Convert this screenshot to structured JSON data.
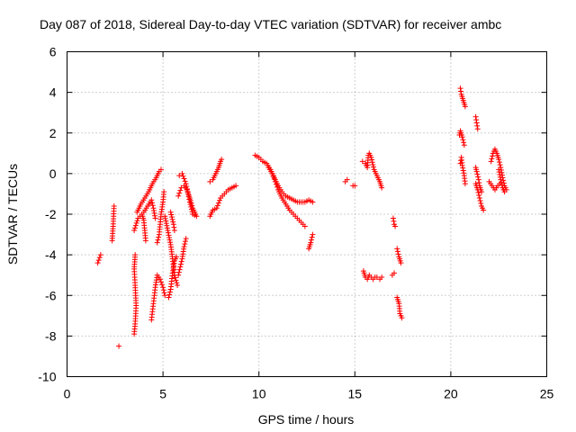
{
  "chart_data": {
    "type": "scatter",
    "title": "Day 087 of 2018, Sidereal Day-to-day VTEC variation (SDTVAR) for receiver ambc",
    "xlabel": "GPS time / hours",
    "ylabel": "SDTVAR / TECUs",
    "xlim": [
      0,
      25
    ],
    "ylim": [
      -10,
      6
    ],
    "xticks": [
      0,
      5,
      10,
      15,
      20,
      25
    ],
    "yticks": [
      -10,
      -8,
      -6,
      -4,
      -2,
      0,
      2,
      4,
      6
    ],
    "xtick_labels": [
      "0",
      "5",
      "10",
      "15",
      "20",
      "25"
    ],
    "ytick_labels": [
      "-10",
      "-8",
      "-6",
      "-4",
      "-2",
      "0",
      "2",
      "4",
      "6"
    ],
    "grid": true,
    "marker": "+",
    "color": "#ff0000",
    "tracks": [
      [
        [
          1.6,
          -4.4
        ],
        [
          1.75,
          -4.0
        ]
      ],
      [
        [
          2.35,
          -3.3
        ],
        [
          2.4,
          -2.6
        ],
        [
          2.45,
          -1.6
        ]
      ],
      [
        [
          2.7,
          -8.5
        ]
      ],
      [
        [
          3.5,
          -7.9
        ],
        [
          3.55,
          -7.4
        ],
        [
          3.6,
          -6.5
        ],
        [
          3.55,
          -5.5
        ],
        [
          3.5,
          -4.7
        ],
        [
          3.55,
          -4.0
        ]
      ],
      [
        [
          3.5,
          -2.8
        ],
        [
          3.7,
          -2.2
        ],
        [
          3.9,
          -2.0
        ],
        [
          4.0,
          -2.3
        ],
        [
          4.1,
          -3.3
        ]
      ],
      [
        [
          3.65,
          -1.9
        ],
        [
          3.85,
          -1.5
        ],
        [
          4.05,
          -1.2
        ],
        [
          4.25,
          -0.9
        ],
        [
          4.45,
          -0.5
        ],
        [
          4.65,
          -0.2
        ],
        [
          4.8,
          0.1
        ],
        [
          4.9,
          0.2
        ]
      ],
      [
        [
          4.0,
          -1.9
        ],
        [
          4.2,
          -1.6
        ],
        [
          4.4,
          -1.3
        ],
        [
          4.5,
          -1.7
        ],
        [
          4.6,
          -2.2
        ]
      ],
      [
        [
          4.4,
          -7.2
        ],
        [
          4.5,
          -6.4
        ],
        [
          4.6,
          -5.6
        ],
        [
          4.7,
          -5.0
        ],
        [
          4.85,
          -5.2
        ],
        [
          5.0,
          -5.6
        ],
        [
          5.1,
          -6.0
        ]
      ],
      [
        [
          4.7,
          -3.4
        ],
        [
          4.8,
          -3.0
        ],
        [
          4.9,
          -2.0
        ],
        [
          5.0,
          -1.4
        ],
        [
          5.05,
          -0.9
        ]
      ],
      [
        [
          5.1,
          -2.1
        ],
        [
          5.25,
          -2.8
        ],
        [
          5.4,
          -3.5
        ],
        [
          5.5,
          -4.2
        ],
        [
          5.6,
          -5.0
        ],
        [
          5.75,
          -5.5
        ]
      ],
      [
        [
          5.4,
          -1.9
        ],
        [
          5.55,
          -2.5
        ],
        [
          5.6,
          -2.8
        ]
      ],
      [
        [
          5.3,
          -6.1
        ],
        [
          5.4,
          -5.7
        ],
        [
          5.5,
          -4.9
        ],
        [
          5.6,
          -4.3
        ],
        [
          5.7,
          -4.1
        ]
      ],
      [
        [
          5.8,
          -5.0
        ],
        [
          5.9,
          -4.6
        ],
        [
          6.0,
          -4.2
        ],
        [
          6.1,
          -3.6
        ],
        [
          6.2,
          -3.2
        ]
      ],
      [
        [
          5.8,
          -1.1
        ],
        [
          5.95,
          -0.7
        ],
        [
          6.1,
          -0.6
        ],
        [
          6.25,
          -0.8
        ],
        [
          6.4,
          -1.2
        ],
        [
          6.55,
          -1.7
        ],
        [
          6.7,
          -2.0
        ]
      ],
      [
        [
          5.85,
          -0.1
        ],
        [
          6.0,
          0.0
        ],
        [
          6.2,
          -0.5
        ],
        [
          6.4,
          -1.4
        ],
        [
          6.55,
          -2.0
        ],
        [
          6.75,
          -2.1
        ]
      ],
      [
        [
          7.45,
          -2.1
        ],
        [
          7.6,
          -1.8
        ],
        [
          7.8,
          -1.7
        ],
        [
          8.0,
          -1.2
        ],
        [
          8.2,
          -1.0
        ],
        [
          8.4,
          -0.8
        ],
        [
          8.6,
          -0.7
        ],
        [
          8.8,
          -0.6
        ]
      ],
      [
        [
          7.45,
          -0.4
        ],
        [
          7.6,
          -0.3
        ],
        [
          7.75,
          0.0
        ],
        [
          7.9,
          0.3
        ],
        [
          8.0,
          0.6
        ],
        [
          8.05,
          0.7
        ]
      ],
      [
        [
          9.8,
          0.9
        ],
        [
          10.0,
          0.8
        ],
        [
          10.2,
          0.6
        ],
        [
          10.4,
          0.5
        ],
        [
          10.6,
          0.2
        ],
        [
          10.8,
          -0.2
        ],
        [
          11.0,
          -0.6
        ],
        [
          11.2,
          -0.9
        ],
        [
          11.4,
          -1.1
        ],
        [
          11.6,
          -1.2
        ],
        [
          11.8,
          -1.3
        ],
        [
          12.0,
          -1.4
        ],
        [
          12.2,
          -1.4
        ],
        [
          12.4,
          -1.4
        ],
        [
          12.6,
          -1.3
        ],
        [
          12.8,
          -1.4
        ]
      ],
      [
        [
          10.5,
          0.3
        ],
        [
          10.7,
          0.0
        ],
        [
          10.85,
          -0.4
        ],
        [
          11.0,
          -0.8
        ],
        [
          11.2,
          -1.2
        ],
        [
          11.4,
          -1.5
        ],
        [
          11.6,
          -1.8
        ],
        [
          11.8,
          -2.0
        ],
        [
          12.0,
          -2.2
        ],
        [
          12.2,
          -2.4
        ],
        [
          12.4,
          -2.6
        ]
      ],
      [
        [
          12.6,
          -3.7
        ],
        [
          12.7,
          -3.4
        ],
        [
          12.8,
          -3.0
        ]
      ],
      [
        [
          14.5,
          -0.4
        ],
        [
          14.6,
          -0.3
        ]
      ],
      [
        [
          14.9,
          -0.6
        ],
        [
          15.0,
          -0.6
        ]
      ],
      [
        [
          15.4,
          0.6
        ],
        [
          15.55,
          0.5
        ],
        [
          15.65,
          0.3
        ],
        [
          15.7,
          0.9
        ],
        [
          15.75,
          1.0
        ],
        [
          15.85,
          0.8
        ],
        [
          16.0,
          0.2
        ],
        [
          16.15,
          -0.1
        ],
        [
          16.3,
          -0.4
        ],
        [
          16.4,
          -0.7
        ]
      ],
      [
        [
          15.45,
          -4.8
        ],
        [
          15.55,
          -5.1
        ],
        [
          15.65,
          -5.2
        ],
        [
          15.75,
          -5.0
        ],
        [
          15.85,
          -5.1
        ],
        [
          15.95,
          -5.2
        ],
        [
          16.05,
          -5.1
        ],
        [
          16.15,
          -5.1
        ],
        [
          16.3,
          -5.2
        ],
        [
          16.4,
          -5.1
        ]
      ],
      [
        [
          17.0,
          -2.2
        ],
        [
          17.05,
          -2.5
        ],
        [
          17.1,
          -2.6
        ]
      ],
      [
        [
          16.95,
          -5.0
        ],
        [
          17.05,
          -4.9
        ]
      ],
      [
        [
          17.2,
          -3.7
        ],
        [
          17.3,
          -4.1
        ],
        [
          17.4,
          -4.4
        ]
      ],
      [
        [
          17.2,
          -6.1
        ],
        [
          17.3,
          -6.4
        ],
        [
          17.35,
          -6.9
        ],
        [
          17.45,
          -7.1
        ]
      ],
      [
        [
          20.5,
          4.2
        ],
        [
          20.55,
          3.9
        ],
        [
          20.65,
          3.6
        ],
        [
          20.75,
          3.3
        ]
      ],
      [
        [
          20.45,
          1.9
        ],
        [
          20.5,
          2.1
        ],
        [
          20.6,
          1.8
        ],
        [
          20.7,
          1.4
        ]
      ],
      [
        [
          20.5,
          0.5
        ],
        [
          20.55,
          0.8
        ],
        [
          20.6,
          0.4
        ],
        [
          20.7,
          -0.1
        ],
        [
          20.75,
          -0.5
        ]
      ],
      [
        [
          21.3,
          2.8
        ],
        [
          21.35,
          2.5
        ],
        [
          21.4,
          2.2
        ]
      ],
      [
        [
          21.3,
          0.3
        ],
        [
          21.35,
          0.1
        ],
        [
          21.45,
          -0.3
        ],
        [
          21.5,
          -0.6
        ],
        [
          21.6,
          -0.9
        ]
      ],
      [
        [
          21.3,
          -0.5
        ],
        [
          21.4,
          -0.8
        ],
        [
          21.5,
          -1.2
        ],
        [
          21.6,
          -1.6
        ],
        [
          21.7,
          -1.8
        ]
      ],
      [
        [
          22.0,
          -0.4
        ],
        [
          22.15,
          -0.6
        ],
        [
          22.3,
          -0.8
        ],
        [
          22.45,
          -0.6
        ],
        [
          22.55,
          -0.5
        ]
      ],
      [
        [
          22.1,
          0.6
        ],
        [
          22.2,
          1.0
        ],
        [
          22.3,
          1.2
        ],
        [
          22.4,
          1.0
        ],
        [
          22.5,
          0.7
        ],
        [
          22.6,
          0.3
        ],
        [
          22.7,
          -0.2
        ],
        [
          22.8,
          -0.6
        ],
        [
          22.9,
          -0.8
        ]
      ],
      [
        [
          22.5,
          0.2
        ],
        [
          22.6,
          -0.3
        ],
        [
          22.7,
          -0.7
        ],
        [
          22.8,
          -0.9
        ]
      ]
    ]
  }
}
